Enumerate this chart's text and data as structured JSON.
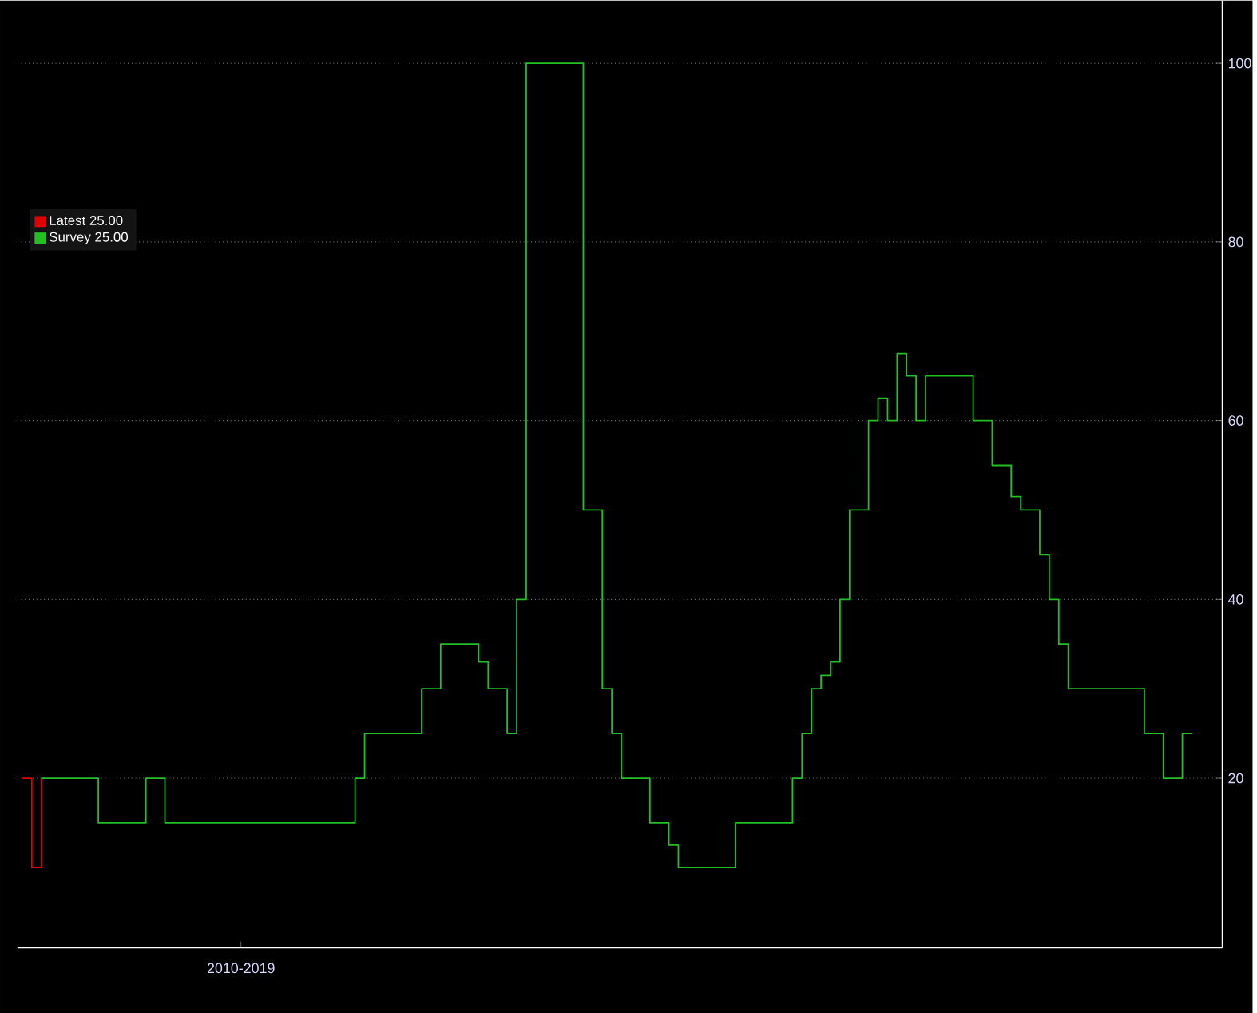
{
  "chart_data": {
    "type": "step",
    "categories": [
      null,
      null,
      null,
      null,
      null,
      null,
      null,
      null,
      null,
      null,
      null,
      null,
      null,
      null,
      null,
      null,
      null,
      null,
      null,
      null,
      null,
      null,
      null,
      "2010-2019",
      null,
      null,
      null,
      null,
      null,
      null,
      null,
      null,
      null,
      null,
      null,
      null,
      null,
      null,
      null,
      null,
      null,
      null,
      null,
      null,
      null,
      null,
      null,
      null,
      null,
      null,
      null,
      null,
      null,
      null,
      null,
      null,
      null,
      null,
      null,
      null,
      null,
      null,
      null,
      null,
      null,
      null,
      null,
      null,
      null,
      null,
      null,
      null,
      null,
      null,
      null,
      null,
      null,
      null,
      null,
      null,
      null,
      null,
      null,
      null,
      null,
      null,
      null,
      null,
      null,
      null,
      null,
      null,
      null,
      null,
      null,
      null,
      null,
      null,
      null,
      null,
      null,
      null,
      null,
      null,
      null,
      null,
      null,
      null,
      null,
      null,
      null,
      null,
      null,
      null,
      null,
      null,
      null,
      null,
      null,
      null,
      null,
      null,
      null,
      null
    ],
    "series": [
      {
        "name": "Latest 25.00",
        "color": "#e00000",
        "values": [
          20,
          10,
          20,
          null,
          null,
          null,
          null,
          null,
          null,
          null,
          null,
          null,
          null,
          null,
          null,
          null,
          null,
          null,
          null,
          null,
          null,
          null,
          null,
          null,
          null,
          null,
          null,
          null,
          null,
          null,
          null,
          null,
          null,
          null,
          null,
          null,
          null,
          null,
          null,
          null,
          null,
          null,
          null,
          null,
          null,
          null,
          null,
          null,
          null,
          null,
          null,
          null,
          null,
          null,
          null,
          null,
          null,
          null,
          null,
          null,
          null,
          null,
          null,
          null,
          null,
          null,
          null,
          null,
          null,
          null,
          null,
          null,
          null,
          null,
          null,
          null,
          null,
          null,
          null,
          null,
          null,
          null,
          null,
          null,
          null,
          null,
          null,
          null,
          null,
          null,
          null,
          null,
          null,
          null,
          null,
          null,
          null,
          null,
          null,
          null,
          null,
          null,
          null,
          null,
          null,
          null,
          null,
          null,
          null,
          null,
          null,
          null,
          null,
          null,
          null,
          null,
          null,
          null,
          null,
          null,
          null,
          null,
          null,
          null
        ]
      },
      {
        "name": "Survey 25.00",
        "color": "#22c022",
        "values": [
          null,
          null,
          20,
          20,
          20,
          20,
          20,
          20,
          15,
          15,
          15,
          15,
          15,
          20,
          20,
          15,
          15,
          15,
          15,
          15,
          15,
          15,
          15,
          15,
          15,
          15,
          15,
          15,
          15,
          15,
          15,
          15,
          15,
          15,
          15,
          20,
          25,
          25,
          25,
          25,
          25,
          25,
          30,
          30,
          35,
          35,
          35,
          35,
          33,
          30,
          30,
          25,
          40,
          100,
          100,
          100,
          100,
          100,
          100,
          50,
          50,
          30,
          25,
          20,
          20,
          20,
          15,
          15,
          12.5,
          10,
          10,
          10,
          10,
          10,
          10,
          15,
          15,
          15,
          15,
          15,
          15,
          20,
          25,
          30,
          31.5,
          33,
          40,
          50,
          50,
          60,
          62.5,
          60,
          67.5,
          65,
          60,
          65,
          65,
          65,
          65,
          65,
          60,
          60,
          55,
          55,
          51.5,
          50,
          50,
          45,
          40,
          35,
          30,
          30,
          30,
          30,
          30,
          30,
          30,
          30,
          25,
          25,
          20,
          20,
          25,
          25
        ]
      }
    ],
    "ylim": [
      1,
      107
    ],
    "yticks": [
      20,
      40,
      60,
      80,
      100
    ],
    "grid": "y",
    "legend": "top left"
  }
}
